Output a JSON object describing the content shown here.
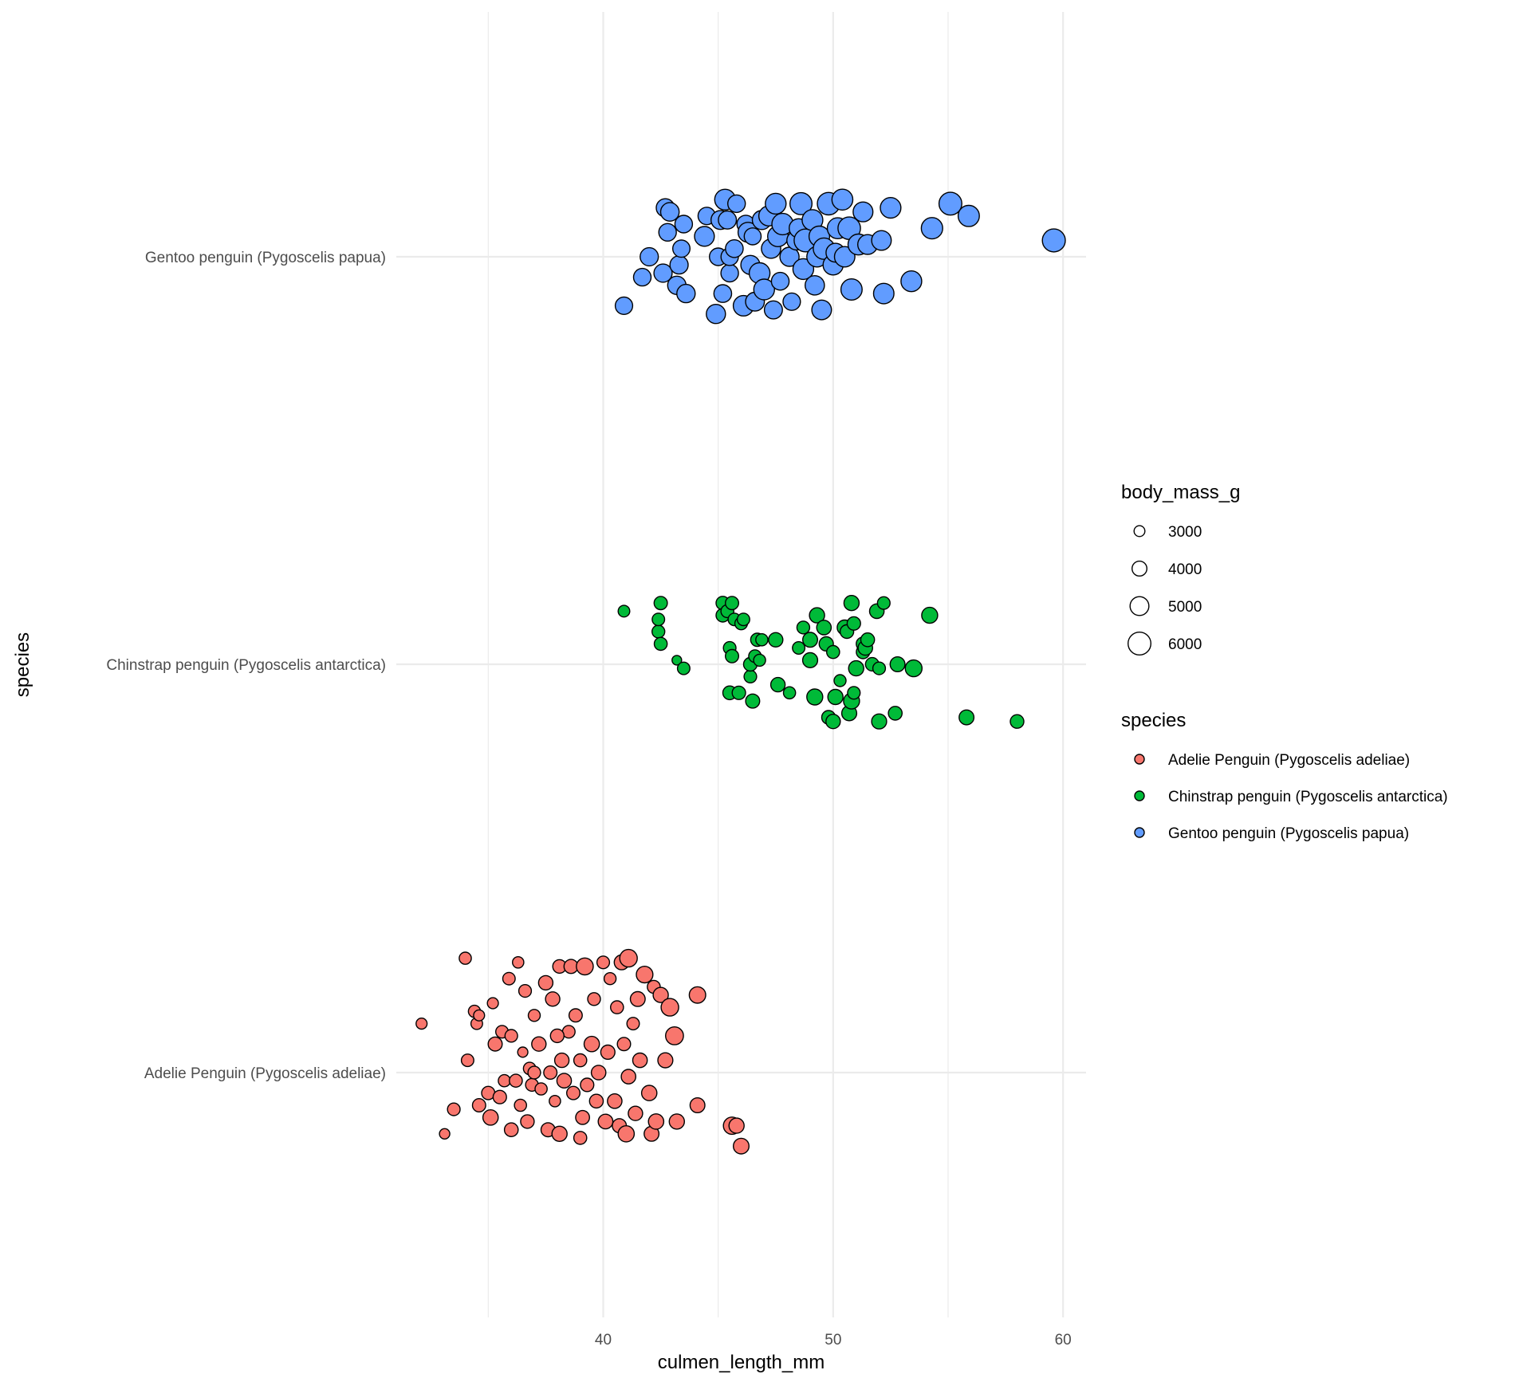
{
  "chart_data": {
    "type": "scatter",
    "xlabel": "culmen_length_mm",
    "ylabel": "species",
    "xlim": [
      31,
      61
    ],
    "x_ticks": [
      40,
      50,
      60
    ],
    "x_tick_labels": [
      "40",
      "50",
      "60"
    ],
    "grid": true,
    "legend_position": "right",
    "size_legend": {
      "title": "body_mass_g",
      "values": [
        3000,
        4000,
        5000,
        6000
      ],
      "labels": [
        "3000",
        "4000",
        "5000",
        "6000"
      ]
    },
    "color_legend": {
      "title": "species"
    },
    "categories": [
      "Adelie Penguin (Pygoscelis adeliae)",
      "Chinstrap penguin (Pygoscelis antarctica)",
      "Gentoo penguin (Pygoscelis papua)"
    ],
    "series": [
      {
        "name": "Adelie Penguin (Pygoscelis adeliae)",
        "color": "#F8766D",
        "points": [
          [
            32.1,
            0.12,
            3050
          ],
          [
            33.1,
            -0.15,
            2900
          ],
          [
            33.5,
            -0.09,
            3475
          ],
          [
            34.0,
            0.28,
            3325
          ],
          [
            34.1,
            0.03,
            3400
          ],
          [
            34.4,
            0.15,
            3325
          ],
          [
            34.5,
            0.12,
            3200
          ],
          [
            34.6,
            -0.08,
            3600
          ],
          [
            34.6,
            0.14,
            3050
          ],
          [
            35.0,
            -0.05,
            3600
          ],
          [
            35.1,
            -0.11,
            4150
          ],
          [
            35.2,
            0.17,
            3050
          ],
          [
            35.3,
            0.07,
            3800
          ],
          [
            35.5,
            -0.06,
            3650
          ],
          [
            35.6,
            0.1,
            3450
          ],
          [
            35.7,
            -0.02,
            3350
          ],
          [
            35.9,
            0.23,
            3425
          ],
          [
            36.0,
            -0.14,
            3750
          ],
          [
            36.0,
            0.09,
            3450
          ],
          [
            36.2,
            -0.02,
            3550
          ],
          [
            36.3,
            0.27,
            3150
          ],
          [
            36.4,
            -0.08,
            3350
          ],
          [
            36.5,
            0.05,
            2850
          ],
          [
            36.6,
            0.2,
            3475
          ],
          [
            36.7,
            -0.12,
            3700
          ],
          [
            36.8,
            0.01,
            3400
          ],
          [
            36.9,
            -0.03,
            3500
          ],
          [
            37.0,
            0.14,
            3300
          ],
          [
            37.2,
            0.07,
            3900
          ],
          [
            37.3,
            -0.04,
            3350
          ],
          [
            37.5,
            0.22,
            3900
          ],
          [
            37.6,
            -0.14,
            3800
          ],
          [
            37.7,
            0.0,
            3600
          ],
          [
            37.8,
            0.18,
            3900
          ],
          [
            37.9,
            -0.07,
            3150
          ],
          [
            38.1,
            0.26,
            3700
          ],
          [
            38.1,
            -0.15,
            4100
          ],
          [
            38.2,
            0.03,
            3900
          ],
          [
            38.3,
            -0.02,
            3950
          ],
          [
            38.5,
            0.1,
            3450
          ],
          [
            38.6,
            0.26,
            3800
          ],
          [
            38.7,
            -0.05,
            3600
          ],
          [
            38.8,
            0.14,
            3600
          ],
          [
            39.0,
            0.03,
            3550
          ],
          [
            39.1,
            -0.11,
            3775
          ],
          [
            39.2,
            0.26,
            4550
          ],
          [
            39.3,
            -0.03,
            3650
          ],
          [
            39.5,
            0.07,
            4150
          ],
          [
            39.6,
            0.18,
            3500
          ],
          [
            39.7,
            -0.07,
            3750
          ],
          [
            39.8,
            0.0,
            3950
          ],
          [
            40.0,
            0.27,
            3475
          ],
          [
            40.1,
            -0.12,
            3975
          ],
          [
            40.2,
            0.05,
            3875
          ],
          [
            40.3,
            0.23,
            3300
          ],
          [
            40.5,
            -0.07,
            3950
          ],
          [
            40.6,
            0.16,
            3550
          ],
          [
            40.7,
            -0.13,
            3800
          ],
          [
            40.8,
            0.27,
            4000
          ],
          [
            40.9,
            0.07,
            3600
          ],
          [
            41.0,
            -0.15,
            4350
          ],
          [
            41.1,
            0.28,
            4700
          ],
          [
            41.1,
            -0.01,
            3950
          ],
          [
            41.3,
            0.12,
            3400
          ],
          [
            41.4,
            -0.1,
            3900
          ],
          [
            41.5,
            0.18,
            4000
          ],
          [
            41.6,
            0.03,
            3950
          ],
          [
            41.8,
            0.24,
            4450
          ],
          [
            42.0,
            -0.05,
            4125
          ],
          [
            42.1,
            -0.15,
            4000
          ],
          [
            42.2,
            0.21,
            3550
          ],
          [
            42.3,
            -0.12,
            4150
          ],
          [
            42.5,
            0.19,
            4100
          ],
          [
            42.7,
            0.03,
            4075
          ],
          [
            42.9,
            0.16,
            4700
          ],
          [
            43.1,
            0.09,
            4775
          ],
          [
            43.2,
            -0.12,
            4100
          ],
          [
            44.1,
            0.19,
            4400
          ],
          [
            44.1,
            -0.08,
            4000
          ],
          [
            45.6,
            -0.13,
            4600
          ],
          [
            45.8,
            -0.13,
            4100
          ],
          [
            46.0,
            -0.18,
            4200
          ],
          [
            37.0,
            0.0,
            3450
          ],
          [
            38.0,
            0.09,
            3700
          ],
          [
            39.0,
            -0.16,
            3550
          ]
        ]
      },
      {
        "name": "Chinstrap penguin (Pygoscelis antarctica)",
        "color": "#00BA38",
        "points": [
          [
            40.9,
            0.13,
            3200
          ],
          [
            42.4,
            0.08,
            3500
          ],
          [
            42.4,
            0.11,
            3400
          ],
          [
            42.5,
            0.15,
            3600
          ],
          [
            42.5,
            0.05,
            3550
          ],
          [
            43.2,
            0.01,
            2700
          ],
          [
            43.5,
            -0.01,
            3400
          ],
          [
            45.2,
            0.15,
            3650
          ],
          [
            45.2,
            0.12,
            3650
          ],
          [
            45.4,
            0.13,
            3525
          ],
          [
            45.5,
            0.04,
            3475
          ],
          [
            45.5,
            -0.07,
            3750
          ],
          [
            45.6,
            0.15,
            3600
          ],
          [
            45.6,
            0.02,
            3600
          ],
          [
            45.7,
            0.11,
            3400
          ],
          [
            45.9,
            -0.07,
            3650
          ],
          [
            46.0,
            0.1,
            3450
          ],
          [
            46.1,
            0.11,
            3400
          ],
          [
            46.4,
            -0.03,
            3450
          ],
          [
            46.4,
            0.0,
            3700
          ],
          [
            46.5,
            -0.09,
            3800
          ],
          [
            46.6,
            0.02,
            3450
          ],
          [
            46.7,
            0.06,
            3625
          ],
          [
            46.8,
            0.01,
            3300
          ],
          [
            46.9,
            0.06,
            3350
          ],
          [
            47.5,
            0.06,
            3900
          ],
          [
            47.6,
            -0.05,
            3900
          ],
          [
            48.1,
            -0.07,
            3325
          ],
          [
            48.5,
            0.04,
            3400
          ],
          [
            48.7,
            0.09,
            3500
          ],
          [
            49.0,
            0.01,
            4050
          ],
          [
            49.0,
            0.06,
            4000
          ],
          [
            49.2,
            -0.08,
            4300
          ],
          [
            49.3,
            0.12,
            4100
          ],
          [
            49.6,
            0.09,
            3950
          ],
          [
            49.7,
            0.05,
            3850
          ],
          [
            49.8,
            -0.13,
            3725
          ],
          [
            50.0,
            0.03,
            3550
          ],
          [
            50.0,
            -0.14,
            3900
          ],
          [
            50.1,
            -0.08,
            4100
          ],
          [
            50.3,
            -0.04,
            3300
          ],
          [
            50.5,
            0.09,
            4050
          ],
          [
            50.6,
            0.08,
            3700
          ],
          [
            50.7,
            -0.12,
            4050
          ],
          [
            50.8,
            0.15,
            4100
          ],
          [
            50.8,
            -0.09,
            4300
          ],
          [
            50.9,
            0.1,
            3675
          ],
          [
            50.9,
            -0.07,
            3450
          ],
          [
            51.0,
            -0.01,
            4100
          ],
          [
            51.3,
            0.03,
            3650
          ],
          [
            51.3,
            0.05,
            3700
          ],
          [
            51.4,
            0.04,
            3950
          ],
          [
            51.5,
            0.06,
            3750
          ],
          [
            51.7,
            0.0,
            3675
          ],
          [
            51.9,
            0.13,
            3950
          ],
          [
            52.0,
            -0.01,
            3450
          ],
          [
            52.0,
            -0.14,
            4050
          ],
          [
            52.2,
            0.15,
            3450
          ],
          [
            52.7,
            -0.12,
            3725
          ],
          [
            52.8,
            0.0,
            4000
          ],
          [
            53.5,
            -0.01,
            4500
          ],
          [
            54.2,
            0.12,
            4300
          ],
          [
            55.8,
            -0.13,
            4000
          ],
          [
            58.0,
            -0.14,
            3700
          ]
        ]
      },
      {
        "name": "Gentoo penguin (Pygoscelis papua)",
        "color": "#619CFF",
        "points": [
          [
            40.9,
            -0.12,
            4650
          ],
          [
            41.7,
            -0.05,
            4700
          ],
          [
            42.0,
            0.0,
            4850
          ],
          [
            42.6,
            -0.04,
            4850
          ],
          [
            42.7,
            0.12,
            4850
          ],
          [
            42.8,
            0.06,
            4700
          ],
          [
            42.9,
            0.11,
            4950
          ],
          [
            43.2,
            -0.07,
            4900
          ],
          [
            43.3,
            -0.02,
            4875
          ],
          [
            43.4,
            0.02,
            4600
          ],
          [
            43.5,
            0.08,
            4700
          ],
          [
            43.6,
            -0.09,
            4900
          ],
          [
            44.4,
            0.05,
            5250
          ],
          [
            44.5,
            0.1,
            4650
          ],
          [
            44.9,
            -0.14,
            5100
          ],
          [
            45.0,
            0.0,
            4700
          ],
          [
            45.1,
            0.09,
            5000
          ],
          [
            45.2,
            -0.09,
            4750
          ],
          [
            45.3,
            0.14,
            5500
          ],
          [
            45.4,
            0.09,
            4800
          ],
          [
            45.5,
            -0.04,
            4700
          ],
          [
            45.5,
            0.0,
            4650
          ],
          [
            45.7,
            0.02,
            4750
          ],
          [
            45.8,
            0.13,
            4700
          ],
          [
            46.1,
            -0.12,
            5400
          ],
          [
            46.2,
            0.08,
            4750
          ],
          [
            46.3,
            0.06,
            5300
          ],
          [
            46.4,
            -0.02,
            5050
          ],
          [
            46.5,
            0.05,
            4550
          ],
          [
            46.6,
            -0.11,
            5000
          ],
          [
            46.8,
            -0.04,
            5500
          ],
          [
            46.9,
            0.09,
            5050
          ],
          [
            47.0,
            -0.08,
            5500
          ],
          [
            47.2,
            0.1,
            5300
          ],
          [
            47.3,
            0.02,
            5150
          ],
          [
            47.4,
            -0.13,
            4800
          ],
          [
            47.5,
            0.13,
            5500
          ],
          [
            47.6,
            0.05,
            5450
          ],
          [
            47.7,
            -0.06,
            4750
          ],
          [
            47.8,
            0.08,
            5650
          ],
          [
            48.1,
            0.0,
            5100
          ],
          [
            48.2,
            -0.11,
            4650
          ],
          [
            48.4,
            0.04,
            5050
          ],
          [
            48.5,
            0.07,
            5050
          ],
          [
            48.6,
            0.13,
            5800
          ],
          [
            48.7,
            -0.03,
            5500
          ],
          [
            48.8,
            0.04,
            6000
          ],
          [
            49.1,
            0.09,
            5500
          ],
          [
            49.2,
            -0.07,
            5150
          ],
          [
            49.3,
            0.0,
            5400
          ],
          [
            49.4,
            0.05,
            5450
          ],
          [
            49.5,
            -0.13,
            5200
          ],
          [
            49.6,
            0.02,
            5650
          ],
          [
            49.8,
            0.13,
            5950
          ],
          [
            50.0,
            -0.02,
            5350
          ],
          [
            50.1,
            0.01,
            5000
          ],
          [
            50.2,
            0.07,
            5550
          ],
          [
            50.4,
            0.14,
            5550
          ],
          [
            50.5,
            0.0,
            5400
          ],
          [
            50.7,
            0.07,
            5950
          ],
          [
            50.8,
            -0.08,
            5600
          ],
          [
            51.1,
            0.03,
            5550
          ],
          [
            51.3,
            0.11,
            5250
          ],
          [
            51.5,
            0.03,
            5250
          ],
          [
            52.1,
            0.04,
            5200
          ],
          [
            52.2,
            -0.09,
            5400
          ],
          [
            52.5,
            0.12,
            5450
          ],
          [
            53.4,
            -0.06,
            5500
          ],
          [
            54.3,
            0.07,
            5650
          ],
          [
            55.1,
            0.13,
            6000
          ],
          [
            55.9,
            0.1,
            5600
          ],
          [
            59.6,
            0.04,
            6050
          ]
        ]
      }
    ]
  }
}
